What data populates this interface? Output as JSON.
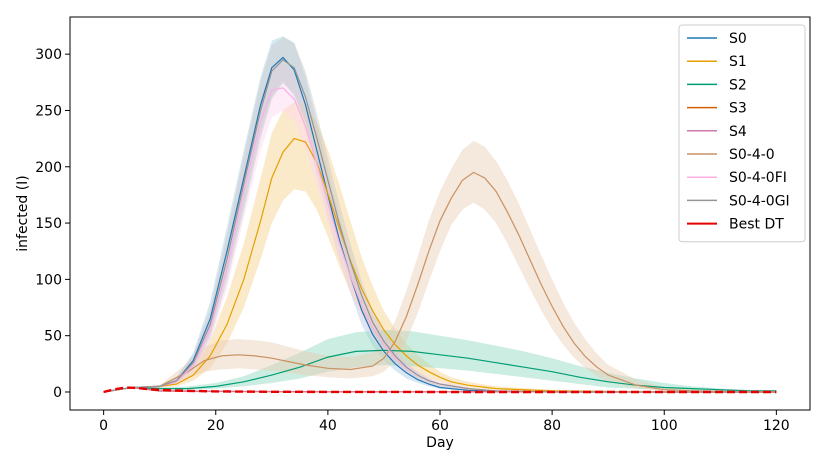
{
  "chart_data": {
    "type": "line",
    "xlabel": "Day",
    "ylabel": "infected (I)",
    "xlim": [
      -6,
      126
    ],
    "ylim": [
      -16,
      333
    ],
    "xticks": [
      0,
      20,
      40,
      60,
      80,
      100,
      120
    ],
    "yticks": [
      0,
      50,
      100,
      150,
      200,
      250,
      300
    ],
    "grid": false,
    "legend_position": "top-right",
    "series": [
      {
        "name": "S0",
        "color": "#1f77b4",
        "band_color": "#a6cee3",
        "dashed": false,
        "x": [
          0,
          5,
          10,
          13,
          16,
          19,
          22,
          25,
          28,
          30,
          32,
          34,
          36,
          38,
          40,
          42,
          44,
          46,
          48,
          50,
          52,
          54,
          56,
          58,
          60,
          65,
          70,
          80,
          100,
          120
        ],
        "y": [
          0,
          4,
          5,
          10,
          28,
          65,
          125,
          190,
          255,
          288,
          297,
          286,
          255,
          215,
          175,
          136,
          103,
          73,
          51,
          36,
          25,
          17,
          11,
          7,
          4,
          1.5,
          0.5,
          0,
          0,
          0
        ],
        "lower": [
          0,
          4,
          4,
          8,
          22,
          52,
          105,
          165,
          230,
          262,
          276,
          262,
          232,
          193,
          155,
          118,
          88,
          60,
          41,
          28,
          19,
          12,
          8,
          5,
          3,
          1,
          0,
          0,
          0,
          0
        ],
        "upper": [
          0,
          4,
          6,
          13,
          35,
          80,
          147,
          215,
          280,
          312,
          316,
          310,
          280,
          240,
          197,
          156,
          120,
          86,
          61,
          44,
          31,
          21,
          14,
          9,
          6,
          2,
          1,
          0,
          0,
          0
        ]
      },
      {
        "name": "S1",
        "color": "#e69f00",
        "band_color": "#f7d08a",
        "dashed": false,
        "x": [
          0,
          5,
          10,
          13,
          16,
          19,
          22,
          25,
          28,
          30,
          32,
          34,
          36,
          38,
          40,
          42,
          44,
          46,
          48,
          50,
          52,
          54,
          56,
          58,
          60,
          62,
          65,
          70,
          80,
          100,
          120
        ],
        "y": [
          0,
          4,
          5,
          7,
          15,
          32,
          60,
          100,
          152,
          190,
          213,
          225,
          222,
          204,
          176,
          146,
          117,
          92,
          72,
          55,
          42,
          32,
          24,
          18,
          13,
          9,
          6,
          3,
          1,
          0,
          0
        ],
        "lower": [
          0,
          4,
          4,
          5,
          10,
          21,
          43,
          75,
          118,
          150,
          170,
          180,
          178,
          162,
          138,
          112,
          89,
          69,
          53,
          40,
          30,
          22,
          16,
          12,
          9,
          6,
          4,
          2,
          0,
          0,
          0
        ],
        "upper": [
          0,
          4,
          6,
          10,
          22,
          46,
          84,
          132,
          190,
          230,
          250,
          258,
          255,
          240,
          215,
          185,
          152,
          120,
          94,
          72,
          56,
          43,
          33,
          25,
          18,
          13,
          9,
          5,
          2,
          0,
          0
        ]
      },
      {
        "name": "S2",
        "color": "#009e73",
        "band_color": "#8fd6bd",
        "dashed": false,
        "x": [
          0,
          5,
          10,
          15,
          20,
          25,
          30,
          35,
          40,
          45,
          50,
          55,
          60,
          65,
          70,
          75,
          80,
          85,
          90,
          95,
          100,
          105,
          110,
          115,
          120
        ],
        "y": [
          0,
          4,
          3,
          3,
          5,
          9,
          15,
          22,
          31,
          36,
          37,
          36,
          33,
          30,
          26,
          22,
          18,
          13,
          9,
          6,
          4,
          3,
          2,
          1,
          1
        ],
        "lower": [
          0,
          4,
          2,
          2,
          3,
          5,
          8,
          12,
          18,
          22,
          24,
          23,
          21,
          19,
          16,
          13,
          10,
          7,
          4,
          3,
          2,
          1,
          1,
          0,
          0
        ],
        "upper": [
          0,
          4,
          4,
          5,
          8,
          14,
          24,
          35,
          47,
          53,
          55,
          54,
          50,
          46,
          41,
          36,
          30,
          23,
          17,
          12,
          8,
          5,
          3,
          2,
          1
        ]
      },
      {
        "name": "S3",
        "color": "#d55e00",
        "band_color": "#f0b27a",
        "dashed": false,
        "x": [
          0,
          5,
          10,
          20,
          40,
          60,
          80,
          100,
          120
        ],
        "y": [
          0,
          4,
          1,
          0.5,
          0.2,
          0.1,
          0.1,
          0,
          0
        ],
        "lower": [
          0,
          4,
          0,
          0,
          0,
          0,
          0,
          0,
          0
        ],
        "upper": [
          0,
          4,
          2,
          1,
          0.5,
          0.3,
          0.2,
          0.1,
          0
        ]
      },
      {
        "name": "S4",
        "color": "#cc79a7",
        "band_color": "#e6b8d2",
        "dashed": false,
        "x": [
          0,
          5,
          10,
          20,
          40,
          60,
          80,
          100,
          120
        ],
        "y": [
          0,
          4,
          1,
          0.5,
          0.2,
          0.1,
          0.1,
          0,
          0
        ],
        "lower": [
          0,
          4,
          0,
          0,
          0,
          0,
          0,
          0,
          0
        ],
        "upper": [
          0,
          4,
          2,
          1,
          0.5,
          0.3,
          0.2,
          0.1,
          0
        ]
      },
      {
        "name": "S0-4-0",
        "color": "#ca9161",
        "band_color": "#e8cdb4",
        "dashed": false,
        "x": [
          0,
          5,
          10,
          15,
          18,
          21,
          24,
          27,
          30,
          33,
          36,
          40,
          44,
          48,
          50,
          52,
          54,
          56,
          58,
          60,
          62,
          64,
          66,
          68,
          70,
          72,
          74,
          76,
          78,
          80,
          82,
          84,
          86,
          88,
          90,
          95,
          100,
          105,
          110,
          120
        ],
        "y": [
          0,
          4,
          5,
          18,
          28,
          32,
          33,
          32,
          30,
          27,
          24,
          21,
          20,
          23,
          30,
          45,
          67,
          95,
          125,
          152,
          172,
          188,
          195,
          190,
          178,
          160,
          140,
          118,
          96,
          76,
          58,
          43,
          31,
          22,
          15,
          6,
          2,
          1,
          0.5,
          0
        ],
        "lower": [
          0,
          4,
          4,
          12,
          18,
          20,
          21,
          20,
          19,
          17,
          15,
          13,
          12,
          14,
          18,
          28,
          45,
          70,
          98,
          125,
          148,
          162,
          168,
          162,
          150,
          132,
          112,
          92,
          73,
          56,
          42,
          30,
          21,
          14,
          9,
          3,
          1,
          0,
          0,
          0
        ],
        "upper": [
          0,
          4,
          6,
          26,
          40,
          46,
          47,
          46,
          44,
          40,
          36,
          32,
          31,
          35,
          44,
          63,
          90,
          120,
          152,
          178,
          198,
          215,
          223,
          218,
          205,
          188,
          168,
          145,
          122,
          100,
          79,
          61,
          46,
          34,
          24,
          11,
          4,
          2,
          1,
          0
        ]
      },
      {
        "name": "S0-4-0FI",
        "color": "#fbafe4",
        "band_color": "#fdd7f1",
        "dashed": false,
        "x": [
          0,
          5,
          10,
          13,
          16,
          19,
          22,
          25,
          28,
          30,
          32,
          34,
          36,
          38,
          40,
          42,
          44,
          46,
          48,
          50,
          52,
          54,
          56,
          58,
          60,
          65,
          70,
          80,
          100,
          120
        ],
        "y": [
          0,
          4,
          5,
          9,
          24,
          56,
          110,
          178,
          240,
          268,
          270,
          260,
          236,
          203,
          168,
          133,
          103,
          77,
          57,
          42,
          30,
          21,
          15,
          10,
          7,
          3,
          1,
          0,
          0,
          0
        ],
        "lower": [
          0,
          4,
          4,
          7,
          18,
          44,
          92,
          154,
          214,
          244,
          250,
          240,
          216,
          183,
          150,
          117,
          89,
          65,
          47,
          34,
          24,
          16,
          11,
          7,
          5,
          2,
          0,
          0,
          0,
          0
        ],
        "upper": [
          0,
          4,
          6,
          12,
          31,
          70,
          130,
          202,
          262,
          290,
          292,
          282,
          258,
          224,
          188,
          150,
          118,
          90,
          68,
          51,
          37,
          26,
          19,
          13,
          9,
          4,
          1,
          0,
          0,
          0
        ]
      },
      {
        "name": "S0-4-0GI",
        "color": "#949494",
        "band_color": "#c7c7c7",
        "dashed": false,
        "x": [
          0,
          5,
          10,
          13,
          16,
          19,
          22,
          25,
          28,
          30,
          32,
          34,
          36,
          38,
          40,
          42,
          44,
          46,
          48,
          50,
          52,
          54,
          56,
          58,
          60,
          65,
          70,
          80,
          100,
          120
        ],
        "y": [
          0,
          4,
          5,
          10,
          26,
          60,
          118,
          185,
          250,
          285,
          295,
          288,
          262,
          226,
          188,
          150,
          116,
          86,
          62,
          45,
          32,
          22,
          15,
          10,
          7,
          3,
          1,
          0,
          0,
          0
        ],
        "lower": [
          0,
          4,
          4,
          8,
          20,
          48,
          98,
          160,
          225,
          260,
          274,
          265,
          240,
          204,
          168,
          132,
          100,
          73,
          52,
          37,
          26,
          18,
          12,
          8,
          5,
          2,
          0,
          0,
          0,
          0
        ],
        "upper": [
          0,
          4,
          6,
          13,
          33,
          74,
          140,
          210,
          276,
          308,
          315,
          310,
          285,
          248,
          208,
          168,
          132,
          99,
          72,
          53,
          38,
          26,
          18,
          12,
          8,
          4,
          1,
          0,
          0,
          0
        ]
      },
      {
        "name": "Best DT",
        "color": "#e60000",
        "band_color": null,
        "dashed": true,
        "x": [
          0,
          2,
          4,
          6,
          8,
          10,
          15,
          20,
          30,
          40,
          60,
          80,
          100,
          120
        ],
        "y": [
          0,
          2.5,
          4,
          3.5,
          2.5,
          1.8,
          1,
          0.5,
          0.2,
          0.1,
          0,
          0,
          0,
          0
        ]
      }
    ]
  }
}
